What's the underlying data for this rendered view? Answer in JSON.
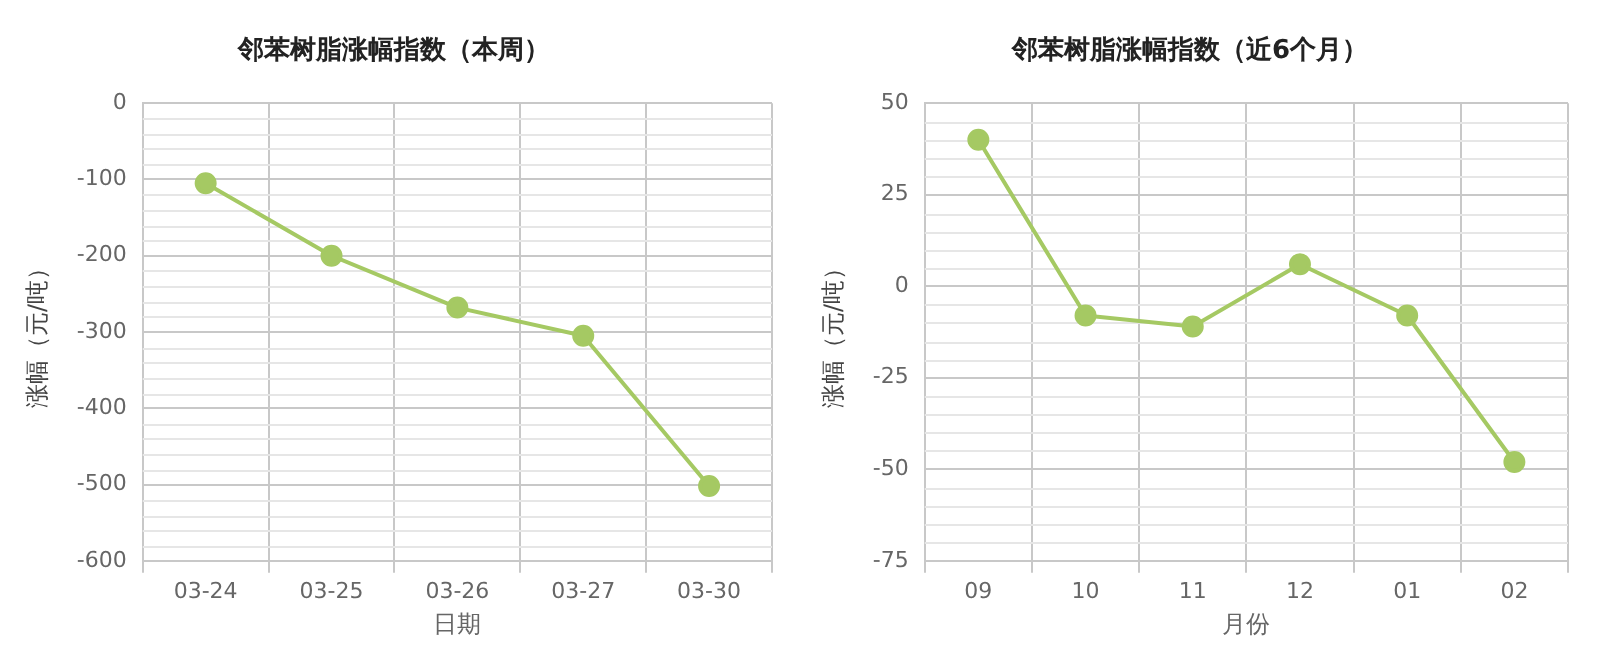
{
  "chart_data": [
    {
      "type": "line",
      "title": "邻苯树脂涨幅指数（本周）",
      "xlabel": "日期",
      "ylabel": "涨幅（元/吨）",
      "categories": [
        "03-24",
        "03-25",
        "03-26",
        "03-27",
        "03-30"
      ],
      "series": [
        {
          "color": "#a5c963",
          "values": [
            -105,
            -200,
            -268,
            -305,
            -502
          ]
        }
      ],
      "ylim": [
        -600,
        0
      ],
      "yticks": [
        -600,
        -500,
        -400,
        -300,
        -200,
        -100,
        0
      ],
      "grid": true,
      "marker": "circle",
      "legend": false
    },
    {
      "type": "line",
      "title": "邻苯树脂涨幅指数（近6个月）",
      "xlabel": "月份",
      "ylabel": "涨幅（元/吨）",
      "categories": [
        "09",
        "10",
        "11",
        "12",
        "01",
        "02"
      ],
      "series": [
        {
          "color": "#a5c963",
          "values": [
            40,
            -8,
            -11,
            6,
            -8,
            -48
          ]
        }
      ],
      "ylim": [
        -75,
        50
      ],
      "yticks": [
        -75,
        -50,
        -25,
        0,
        25,
        50
      ],
      "grid": true,
      "marker": "circle",
      "legend": false
    }
  ]
}
